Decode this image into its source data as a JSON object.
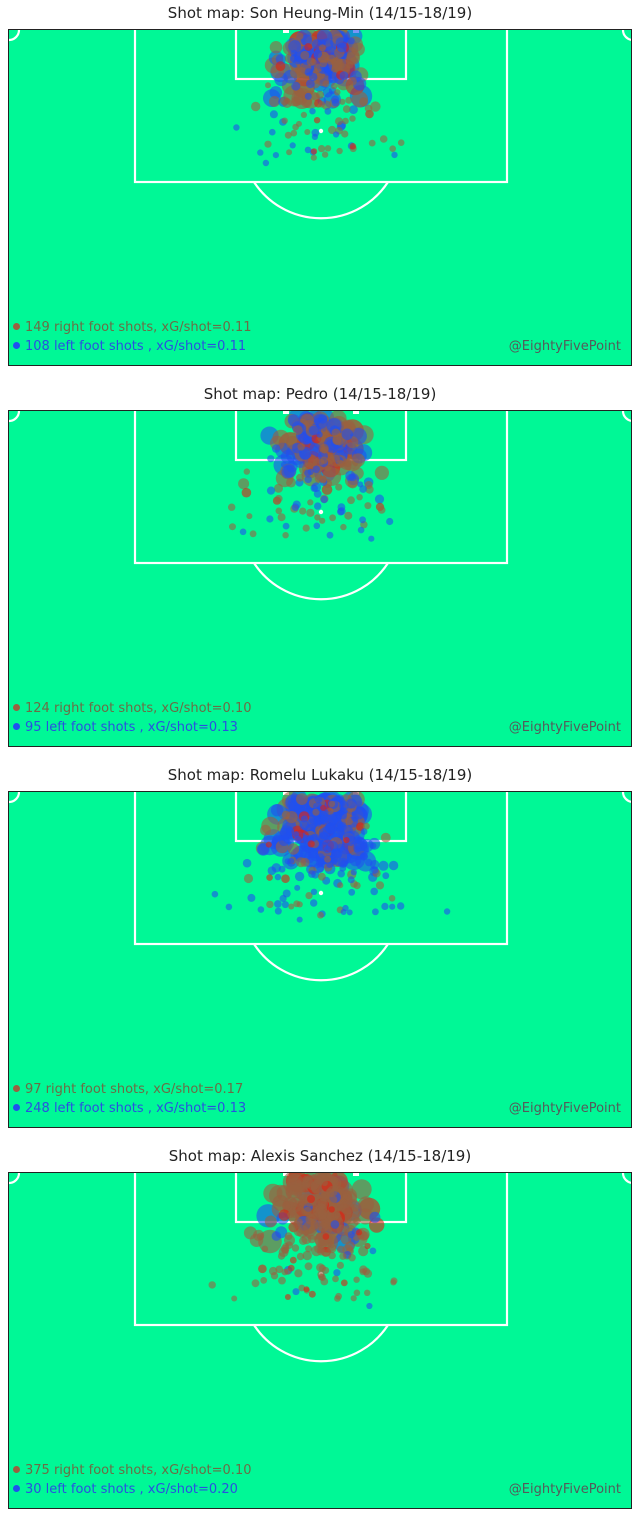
{
  "colors": {
    "pitch": "#00f896",
    "lines": "#ffffff",
    "right_foot": "#9a6040",
    "left_foot": "#2050f0",
    "goal_right": "#e02010",
    "credit": "#555a5a"
  },
  "chart_data": [
    {
      "type": "scatter",
      "title": "Shot map: Son Heung-Min (14/15-18/19)",
      "credit": "@EightyFivePoint",
      "series": [
        {
          "name": "149 right foot shots, xG/shot=0.11",
          "foot": "right",
          "shots": 149,
          "xg_per_shot": 0.11
        },
        {
          "name": "108 left foot shots , xG/shot=0.11",
          "foot": "left",
          "shots": 108,
          "xg_per_shot": 0.11
        }
      ]
    },
    {
      "type": "scatter",
      "title": "Shot map: Pedro (14/15-18/19)",
      "credit": "@EightyFivePoint",
      "series": [
        {
          "name": "124 right foot shots, xG/shot=0.10",
          "foot": "right",
          "shots": 124,
          "xg_per_shot": 0.1
        },
        {
          "name": "95 left foot shots , xG/shot=0.13",
          "foot": "left",
          "shots": 95,
          "xg_per_shot": 0.13
        }
      ]
    },
    {
      "type": "scatter",
      "title": "Shot map: Romelu Lukaku (14/15-18/19)",
      "credit": "@EightyFivePoint",
      "series": [
        {
          "name": "97 right foot shots, xG/shot=0.17",
          "foot": "right",
          "shots": 97,
          "xg_per_shot": 0.17
        },
        {
          "name": "248 left foot shots , xG/shot=0.13",
          "foot": "left",
          "shots": 248,
          "xg_per_shot": 0.13
        }
      ]
    },
    {
      "type": "scatter",
      "title": "Shot map: Alexis Sanchez (14/15-18/19)",
      "credit": "@EightyFivePoint",
      "series": [
        {
          "name": "375 right foot shots, xG/shot=0.10",
          "foot": "right",
          "shots": 375,
          "xg_per_shot": 0.1
        },
        {
          "name": "30 left foot shots , xG/shot=0.20",
          "foot": "left",
          "shots": 30,
          "xg_per_shot": 0.2
        }
      ]
    }
  ]
}
